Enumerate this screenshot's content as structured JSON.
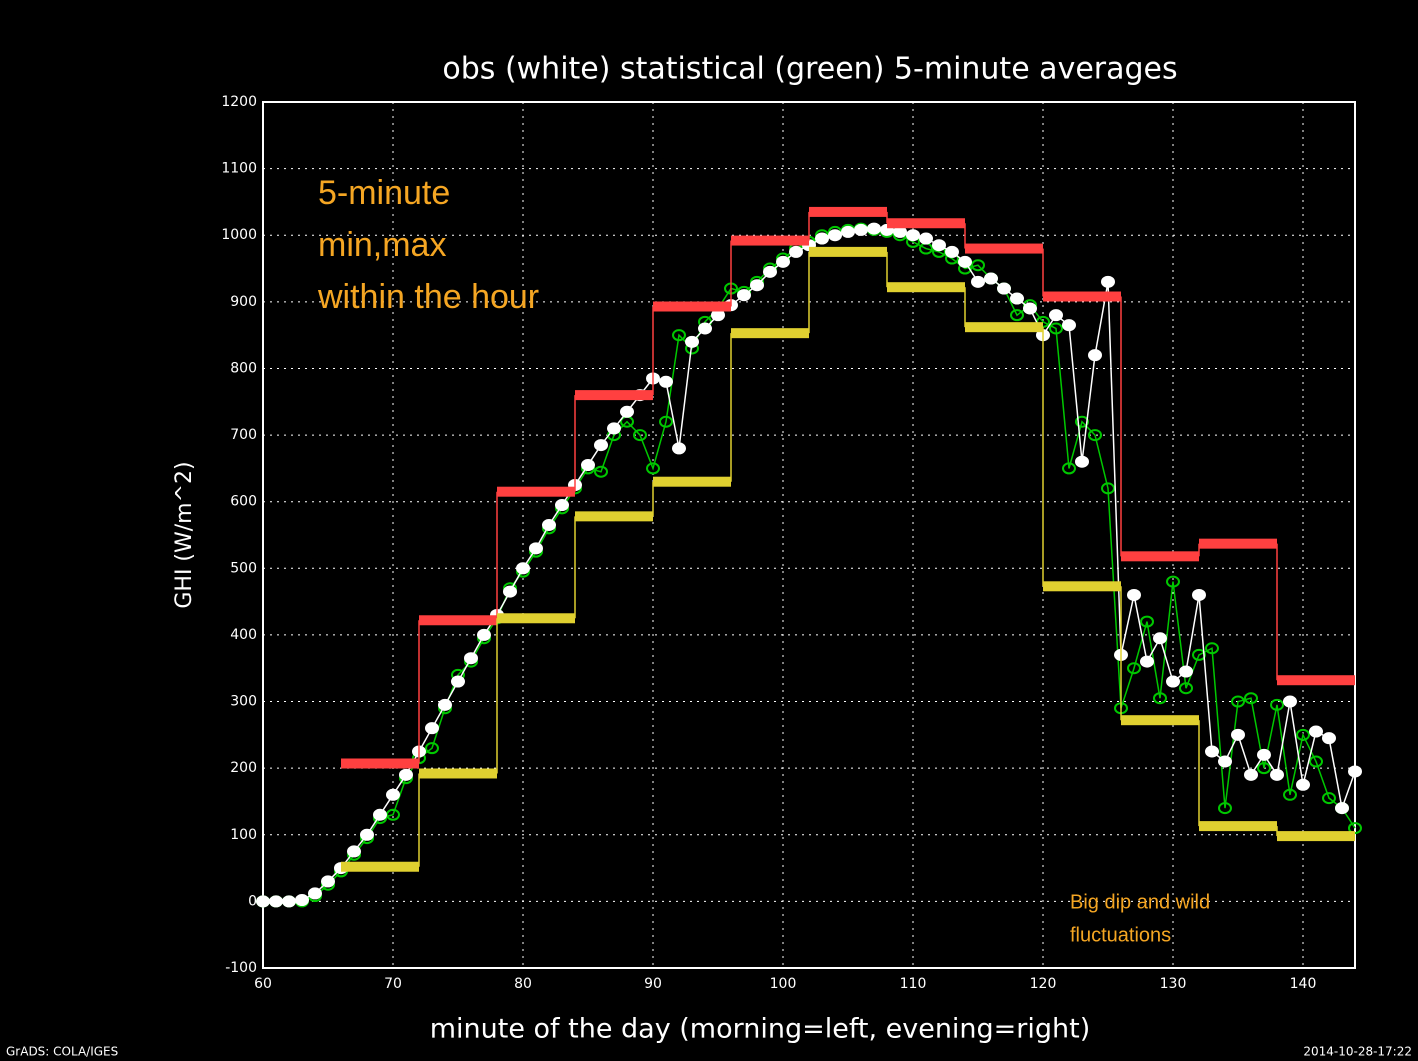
{
  "chart_data": {
    "type": "scatter",
    "title": "obs (white) statistical (green) 5-minute averages",
    "xlabel": "minute of the day (morning=left, evening=right)",
    "ylabel": "GHI (W/m^2)",
    "footer_left": "GrADS: COLA/IGES",
    "footer_right": "2014-10-28-17:22",
    "annotations": [
      {
        "lines": [
          "5-minute",
          "min,max",
          "within the hour"
        ]
      },
      {
        "lines": [
          "Big dip and wild",
          "fluctuations"
        ]
      }
    ],
    "xlim": [
      60,
      144
    ],
    "ylim": [
      -100,
      1200
    ],
    "xticks": [
      60,
      70,
      80,
      90,
      100,
      110,
      120,
      130,
      140
    ],
    "yticks": [
      -100,
      0,
      100,
      200,
      300,
      400,
      500,
      600,
      700,
      800,
      900,
      1000,
      1100,
      1200
    ],
    "grid": true,
    "series": [
      {
        "color": "#00c800",
        "x": [
          60,
          61,
          62,
          63,
          64,
          65,
          66,
          67,
          68,
          69,
          70,
          71,
          72,
          73,
          74,
          75,
          76,
          77,
          78,
          79,
          80,
          81,
          82,
          83,
          84,
          85,
          86,
          87,
          88,
          89,
          90,
          91,
          92,
          93,
          94,
          95,
          96,
          97,
          98,
          99,
          100,
          101,
          102,
          103,
          104,
          105,
          106,
          107,
          108,
          109,
          110,
          111,
          112,
          113,
          114,
          115,
          116,
          117,
          118,
          119,
          120,
          121,
          122,
          123,
          124,
          125,
          126,
          127,
          128,
          129,
          130,
          131,
          132,
          133,
          134,
          135,
          136,
          137,
          138,
          139,
          140,
          141,
          142,
          143,
          144
        ],
        "values": [
          0,
          0,
          0,
          0,
          8,
          25,
          45,
          70,
          95,
          125,
          130,
          185,
          215,
          230,
          290,
          340,
          360,
          395,
          425,
          470,
          495,
          525,
          560,
          590,
          620,
          650,
          645,
          700,
          720,
          700,
          650,
          720,
          850,
          830,
          870,
          890,
          920,
          915,
          930,
          950,
          965,
          980,
          990,
          1000,
          1005,
          1008,
          1010,
          1008,
          1005,
          1000,
          990,
          980,
          975,
          965,
          950,
          955,
          935,
          920,
          880,
          895,
          870,
          860,
          650,
          720,
          700,
          620,
          290,
          350,
          420,
          305,
          480,
          320,
          370,
          380,
          140,
          300,
          305,
          200,
          295,
          160,
          250,
          210,
          155,
          140,
          110
        ]
      },
      {
        "color": "#ffffff",
        "x": [
          60,
          61,
          62,
          63,
          64,
          65,
          66,
          67,
          68,
          69,
          70,
          71,
          72,
          73,
          74,
          75,
          76,
          77,
          78,
          79,
          80,
          81,
          82,
          83,
          84,
          85,
          86,
          87,
          88,
          89,
          90,
          91,
          92,
          93,
          94,
          95,
          96,
          97,
          98,
          99,
          100,
          101,
          102,
          103,
          104,
          105,
          106,
          107,
          108,
          109,
          110,
          111,
          112,
          113,
          114,
          115,
          116,
          117,
          118,
          119,
          120,
          121,
          122,
          123,
          124,
          125,
          126,
          127,
          128,
          129,
          130,
          131,
          132,
          133,
          134,
          135,
          136,
          137,
          138,
          139,
          140,
          141,
          142,
          143,
          144
        ],
        "values": [
          0,
          0,
          0,
          2,
          12,
          30,
          50,
          75,
          100,
          130,
          160,
          190,
          225,
          260,
          295,
          330,
          365,
          400,
          430,
          465,
          500,
          530,
          565,
          595,
          625,
          655,
          685,
          710,
          735,
          760,
          785,
          780,
          680,
          840,
          860,
          880,
          895,
          910,
          925,
          945,
          960,
          975,
          985,
          995,
          1000,
          1005,
          1008,
          1010,
          1008,
          1005,
          1000,
          995,
          985,
          975,
          960,
          930,
          935,
          920,
          905,
          890,
          850,
          880,
          865,
          660,
          820,
          930,
          370,
          460,
          360,
          395,
          330,
          345,
          460,
          225,
          210,
          250,
          190,
          220,
          190,
          300,
          175,
          255,
          245,
          140,
          195
        ]
      }
    ],
    "steps": [
      {
        "color": "#ff4040",
        "bins": [
          66,
          72,
          78,
          84,
          90,
          96,
          102,
          108,
          114,
          120,
          126,
          132,
          138,
          144
        ],
        "values": [
          207,
          422,
          615,
          760,
          893,
          992,
          1035,
          1018,
          980,
          908,
          518,
          537,
          332
        ]
      },
      {
        "color": "#e0d030",
        "bins": [
          66,
          72,
          78,
          84,
          90,
          96,
          102,
          108,
          114,
          120,
          126,
          132,
          138,
          144
        ],
        "values": [
          52,
          192,
          425,
          578,
          630,
          853,
          975,
          922,
          862,
          473,
          272,
          113,
          98
        ]
      }
    ]
  }
}
